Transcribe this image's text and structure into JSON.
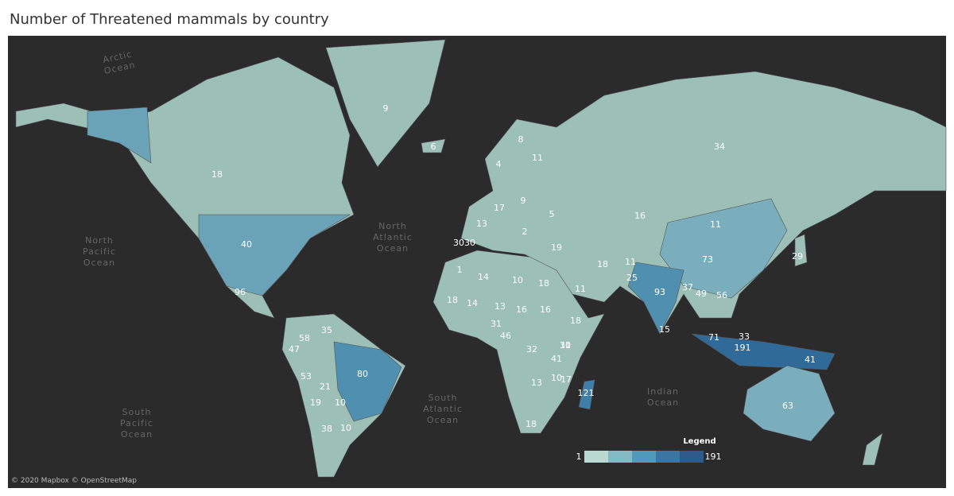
{
  "title": "Number of Threatened mammals by country",
  "oceans": [
    "Arctic Ocean",
    "North Pacific Ocean",
    "North Atlantic Ocean",
    "South Atlantic Ocean",
    "Indian Ocean",
    "South Pacific Ocean"
  ],
  "labels": [
    9,
    6,
    18,
    40,
    96,
    34,
    16,
    11,
    73,
    93,
    80,
    53,
    58,
    35,
    47,
    21,
    38,
    10,
    19,
    10,
    63,
    191,
    71,
    33,
    41,
    121,
    41,
    30,
    32,
    46,
    31,
    18,
    16,
    16,
    18,
    14,
    10,
    14,
    13,
    18,
    11,
    18,
    19,
    25,
    11,
    49,
    37,
    56,
    29,
    13,
    10,
    17,
    18,
    15,
    11,
    30,
    30,
    13,
    17,
    9,
    5,
    4,
    11,
    8,
    2,
    1,
    5,
    18
  ],
  "legend": {
    "title": "Legend",
    "min": 1,
    "max": 191
  },
  "attribution": "© 2020 Mapbox © OpenStreetMap"
}
